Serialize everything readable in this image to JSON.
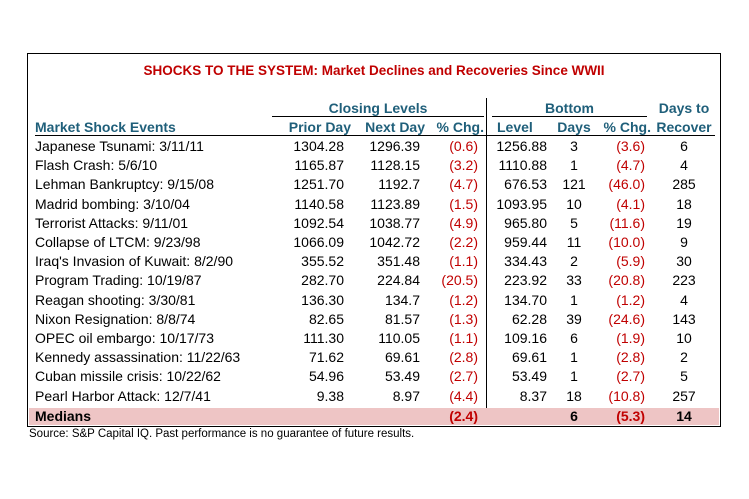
{
  "title": "SHOCKS TO THE SYSTEM: Market Declines and Recoveries Since WWII",
  "groups": {
    "closing": "Closing Levels",
    "bottom": "Bottom",
    "days_to": "Days to"
  },
  "headers": {
    "event": "Market Shock Events",
    "prior_day": "Prior Day",
    "next_day": "Next Day",
    "pct_chg": "% Chg.",
    "level": "Level",
    "days": "Days",
    "bottom_pct_chg": "% Chg.",
    "recover": "Recover"
  },
  "rows": [
    {
      "event": "Japanese Tsunami: 3/11/11",
      "prior": "1304.28",
      "next": "1296.39",
      "chg": "(0.6)",
      "level": "1256.88",
      "days": "3",
      "bchg": "(3.6)",
      "recover": "6"
    },
    {
      "event": "Flash Crash: 5/6/10",
      "prior": "1165.87",
      "next": "1128.15",
      "chg": "(3.2)",
      "level": "1110.88",
      "days": "1",
      "bchg": "(4.7)",
      "recover": "4"
    },
    {
      "event": "Lehman Bankruptcy: 9/15/08",
      "prior": "1251.70",
      "next": "1192.7",
      "chg": "(4.7)",
      "level": "676.53",
      "days": "121",
      "bchg": "(46.0)",
      "recover": "285"
    },
    {
      "event": "Madrid bombing: 3/10/04",
      "prior": "1140.58",
      "next": "1123.89",
      "chg": "(1.5)",
      "level": "1093.95",
      "days": "10",
      "bchg": "(4.1)",
      "recover": "18"
    },
    {
      "event": "Terrorist Attacks: 9/11/01",
      "prior": "1092.54",
      "next": "1038.77",
      "chg": "(4.9)",
      "level": "965.80",
      "days": "5",
      "bchg": "(11.6)",
      "recover": "19"
    },
    {
      "event": "Collapse of LTCM: 9/23/98",
      "prior": "1066.09",
      "next": "1042.72",
      "chg": "(2.2)",
      "level": "959.44",
      "days": "11",
      "bchg": "(10.0)",
      "recover": "9"
    },
    {
      "event": "Iraq's Invasion of Kuwait: 8/2/90",
      "prior": "355.52",
      "next": "351.48",
      "chg": "(1.1)",
      "level": "334.43",
      "days": "2",
      "bchg": "(5.9)",
      "recover": "30"
    },
    {
      "event": "Program Trading: 10/19/87",
      "prior": "282.70",
      "next": "224.84",
      "chg": "(20.5)",
      "level": "223.92",
      "days": "33",
      "bchg": "(20.8)",
      "recover": "223"
    },
    {
      "event": "Reagan shooting: 3/30/81",
      "prior": "136.30",
      "next": "134.7",
      "chg": "(1.2)",
      "level": "134.70",
      "days": "1",
      "bchg": "(1.2)",
      "recover": "4"
    },
    {
      "event": "Nixon Resignation: 8/8/74",
      "prior": "82.65",
      "next": "81.57",
      "chg": "(1.3)",
      "level": "62.28",
      "days": "39",
      "bchg": "(24.6)",
      "recover": "143"
    },
    {
      "event": "OPEC oil embargo: 10/17/73",
      "prior": "111.30",
      "next": "110.05",
      "chg": "(1.1)",
      "level": "109.16",
      "days": "6",
      "bchg": "(1.9)",
      "recover": "10"
    },
    {
      "event": "Kennedy assassination: 11/22/63",
      "prior": "71.62",
      "next": "69.61",
      "chg": "(2.8)",
      "level": "69.61",
      "days": "1",
      "bchg": "(2.8)",
      "recover": "2"
    },
    {
      "event": "Cuban missile crisis: 10/22/62",
      "prior": "54.96",
      "next": "53.49",
      "chg": "(2.7)",
      "level": "53.49",
      "days": "1",
      "bchg": "(2.7)",
      "recover": "5"
    },
    {
      "event": "Pearl Harbor Attack: 12/7/41",
      "prior": "9.38",
      "next": "8.97",
      "chg": "(4.4)",
      "level": "8.37",
      "days": "18",
      "bchg": "(10.8)",
      "recover": "257"
    }
  ],
  "medians": {
    "label": "Medians",
    "chg": "(2.4)",
    "days": "6",
    "bchg": "(5.3)",
    "recover": "14"
  },
  "source": "Source: S&P Capital IQ. Past performance is no guarantee of future results.",
  "colors": {
    "title": "#c00000",
    "header": "#1f5f7a",
    "negative": "#c00000",
    "median_band": "#eec5c5"
  }
}
